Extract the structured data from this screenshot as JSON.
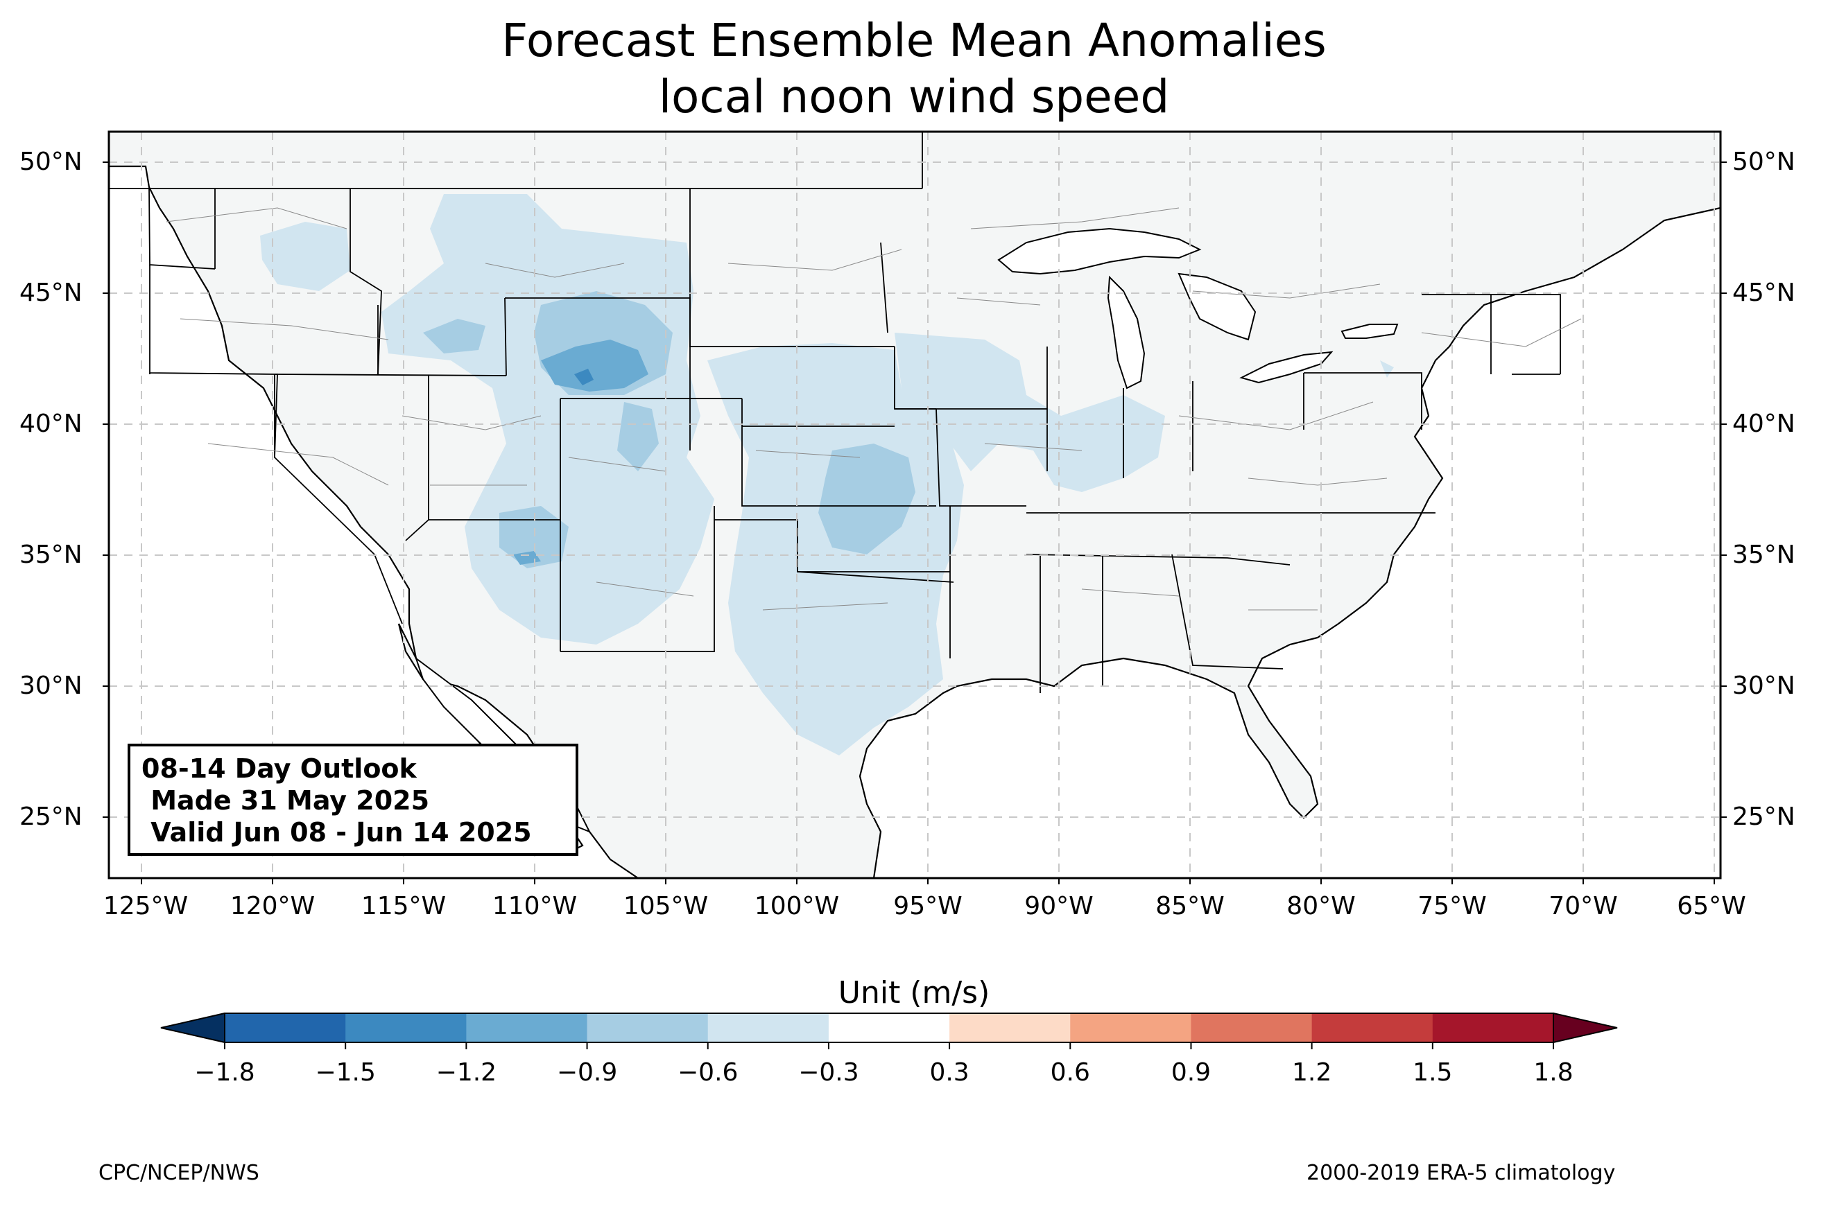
{
  "title": {
    "line1": "Forecast Ensemble Mean Anomalies",
    "line2": "local noon wind speed"
  },
  "map": {
    "lat_labels": [
      "50°N",
      "45°N",
      "40°N",
      "35°N",
      "30°N",
      "25°N"
    ],
    "lon_labels": [
      "125°W",
      "120°W",
      "115°W",
      "110°W",
      "105°W",
      "100°W",
      "95°W",
      "90°W",
      "85°W",
      "80°W",
      "75°W",
      "70°W",
      "65°W"
    ],
    "land_color": "#f4f6f6",
    "outlook": {
      "line1": "08-14 Day Outlook",
      "line2": " Made 31 May 2025",
      "line3": " Valid Jun 08 - Jun 14 2025"
    }
  },
  "colorbar": {
    "title": "Unit (m/s)",
    "ticks": [
      "−1.8",
      "−1.5",
      "−1.2",
      "−0.9",
      "−0.6",
      "−0.3",
      "0.3",
      "0.6",
      "0.9",
      "1.2",
      "1.5",
      "1.8"
    ],
    "colors": [
      "#2166ac",
      "#3c89c0",
      "#6aabd2",
      "#a6cde3",
      "#d1e5f0",
      "#ffffff",
      "#fddbc7",
      "#f4a482",
      "#e0755f",
      "#c43c3c",
      "#a5162b"
    ],
    "extend_low_color": "#053061",
    "extend_high_color": "#67001f"
  },
  "footer": {
    "source": "CPC/NCEP/NWS",
    "climatology": "2000-2019 ERA-5 climatology"
  }
}
